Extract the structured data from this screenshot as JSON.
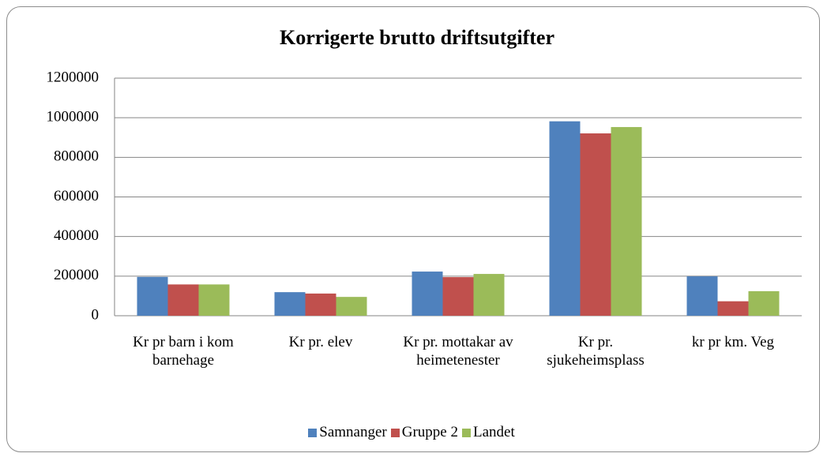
{
  "chart_data": {
    "type": "bar",
    "title": "Korrigerte brutto driftsutgifter",
    "categories": [
      "Kr pr barn i kom barnehage",
      "Kr pr. elev",
      "Kr pr. mottakar av heimetenester",
      "Kr pr. sjukeheimsplass",
      "kr pr km. Veg"
    ],
    "series": [
      {
        "name": "Samnanger",
        "color": "#4f81bd",
        "values": [
          196000,
          119000,
          223000,
          982000,
          199000
        ]
      },
      {
        "name": "Gruppe 2",
        "color": "#c0504d",
        "values": [
          158000,
          112000,
          195000,
          921000,
          73000
        ]
      },
      {
        "name": "Landet",
        "color": "#9bbb59",
        "values": [
          158000,
          95000,
          211000,
          953000,
          124000
        ]
      }
    ],
    "ylim": [
      0,
      1200000
    ],
    "yticks": [
      0,
      200000,
      400000,
      600000,
      800000,
      1000000,
      1200000
    ],
    "grid": true,
    "legend": "bottom"
  }
}
